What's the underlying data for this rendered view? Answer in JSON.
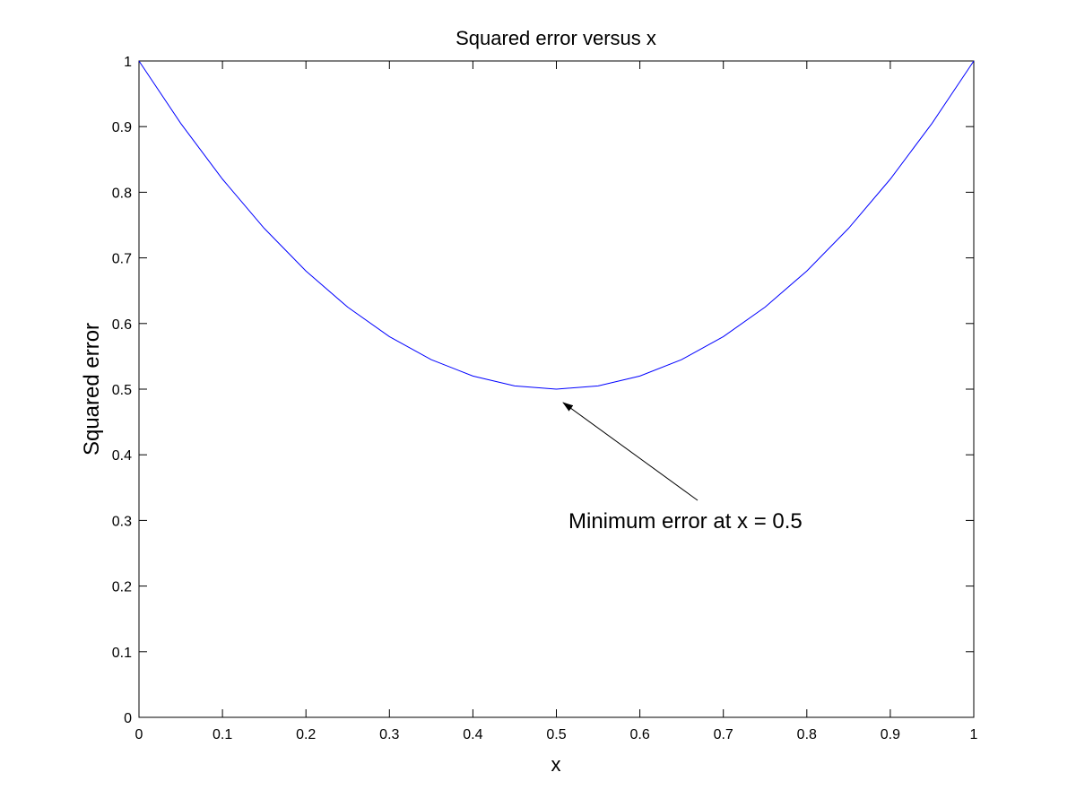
{
  "chart_data": {
    "type": "line",
    "title": "Squared error versus x",
    "xlabel": "x",
    "ylabel": "Squared error",
    "annotation": "Minimum error at x = 0.5",
    "x": [
      0,
      0.05,
      0.1,
      0.15,
      0.2,
      0.25,
      0.3,
      0.35,
      0.4,
      0.45,
      0.5,
      0.55,
      0.6,
      0.65,
      0.7,
      0.75,
      0.8,
      0.85,
      0.9,
      0.95,
      1
    ],
    "series": [
      {
        "color": "#0000ff",
        "values": [
          1,
          0.905,
          0.82,
          0.745,
          0.68,
          0.625,
          0.58,
          0.545,
          0.52,
          0.505,
          0.5,
          0.505,
          0.52,
          0.545,
          0.58,
          0.625,
          0.68,
          0.745,
          0.82,
          0.905,
          1
        ]
      }
    ],
    "xlim": [
      0,
      1
    ],
    "ylim": [
      0,
      1
    ],
    "xticks": [
      0,
      0.1,
      0.2,
      0.3,
      0.4,
      0.5,
      0.6,
      0.7,
      0.8,
      0.9,
      1
    ],
    "yticks": [
      0,
      0.1,
      0.2,
      0.3,
      0.4,
      0.5,
      0.6,
      0.7,
      0.8,
      0.9,
      1
    ],
    "grid": false
  }
}
